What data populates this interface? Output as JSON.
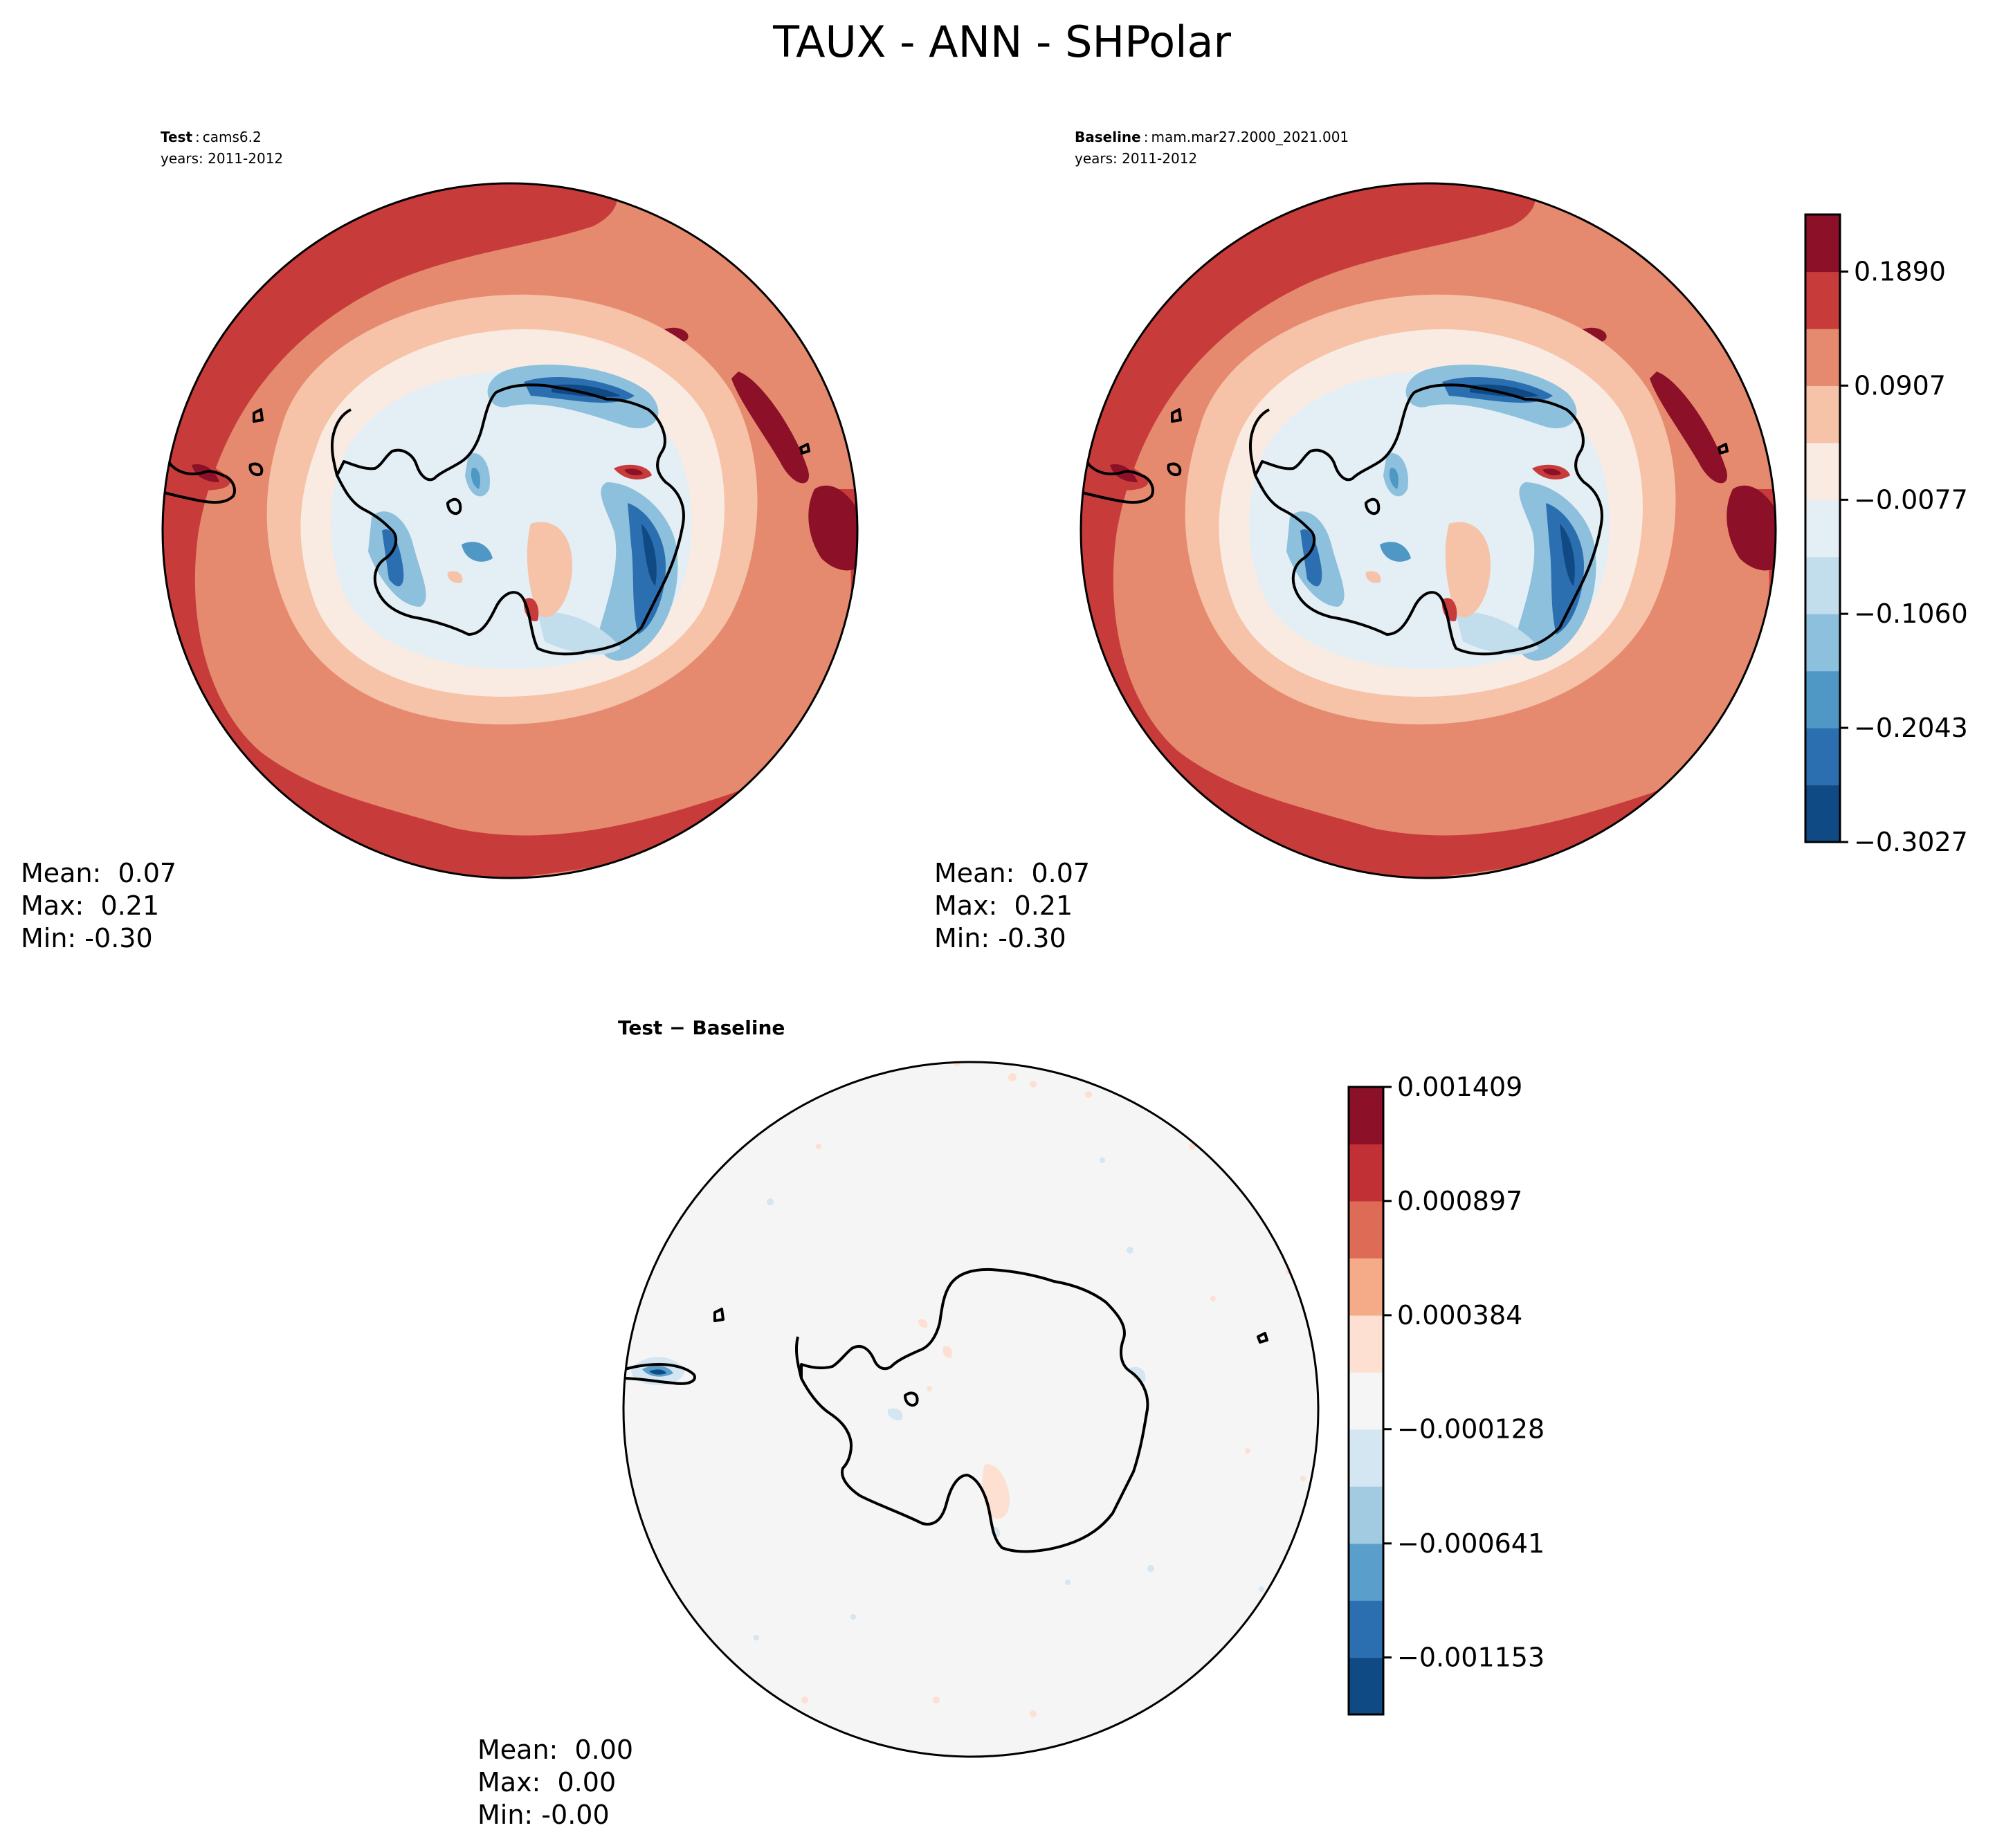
{
  "figure": {
    "title": "TAUX - ANN - SHPolar"
  },
  "panels": {
    "test": {
      "label_bold": "Test",
      "label_sep": ":",
      "case": "cams6.2",
      "years": "years: 2011-2012",
      "stats": {
        "mean": "Mean:  0.07",
        "max": "Max:  0.21",
        "min": "Min: -0.30"
      }
    },
    "baseline": {
      "label_bold": "Baseline",
      "label_sep": ":",
      "case": "mam.mar27.2000_2021.001",
      "years": "years: 2011-2012",
      "stats": {
        "mean": "Mean:  0.07",
        "max": "Max:  0.21",
        "min": "Min: -0.30"
      }
    },
    "diff": {
      "title": "Test − Baseline",
      "stats": {
        "mean": "Mean:  0.00",
        "max": "Max:  0.00",
        "min": "Min: -0.00"
      }
    }
  },
  "chart_data": [
    {
      "type": "heatmap",
      "subtype": "polar-contour",
      "projection": "south-polar-stereographic",
      "panels": [
        "test",
        "baseline"
      ],
      "colorbar": {
        "levels": [
          -0.3027,
          -0.2535,
          -0.2043,
          -0.1552,
          -0.106,
          -0.0568,
          -0.0077,
          0.0415,
          0.0907,
          0.1398,
          0.189,
          0.2382
        ],
        "tick_labels": [
          "0.1890",
          "0.0907",
          "−0.0077",
          "−0.1060",
          "−0.2043",
          "−0.3027"
        ],
        "tick_values": [
          0.189,
          0.0907,
          -0.0077,
          -0.106,
          -0.2043,
          -0.3027
        ],
        "colors": [
          "#0f4a85",
          "#2c6fb0",
          "#4f98c6",
          "#8dc0dc",
          "#c2ddec",
          "#e4eef5",
          "#f9ebe2",
          "#f6c2a8",
          "#e58a6e",
          "#c73c3a",
          "#8b1028"
        ]
      }
    },
    {
      "type": "heatmap",
      "subtype": "polar-contour",
      "projection": "south-polar-stereographic",
      "panels": [
        "diff"
      ],
      "colorbar": {
        "levels": [
          -0.001409,
          -0.001153,
          -0.000897,
          -0.000641,
          -0.000384,
          -0.000128,
          0.000128,
          0.000384,
          0.000641,
          0.000897,
          0.001153,
          0.001409
        ],
        "tick_labels": [
          "0.001409",
          "0.000897",
          "0.000384",
          "−0.000128",
          "−0.000641",
          "−0.001153"
        ],
        "tick_values": [
          0.001409,
          0.000897,
          0.000384,
          -0.000128,
          -0.000641,
          -0.001153
        ],
        "colors": [
          "#0f4a85",
          "#2c6fb0",
          "#5a9fcb",
          "#a2cbe2",
          "#d3e6f1",
          "#f5f5f5",
          "#fde0d2",
          "#f5ab88",
          "#dd6b55",
          "#c13034",
          "#8b1028"
        ]
      }
    }
  ]
}
